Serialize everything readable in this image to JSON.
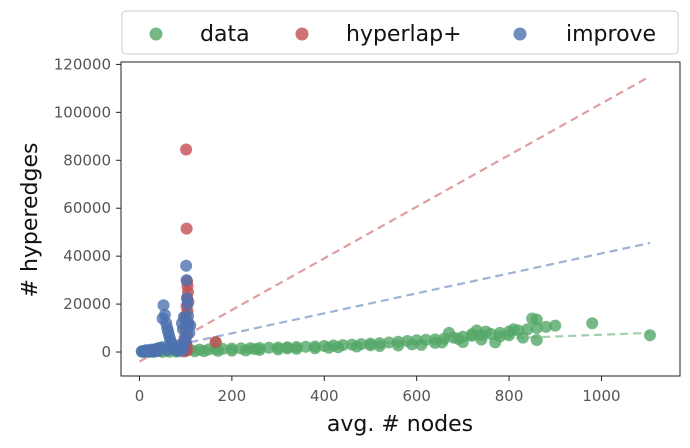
{
  "chart_data": {
    "type": "scatter",
    "xlabel": "avg. # nodes",
    "ylabel": "# hyperedges",
    "xlim": [
      -40,
      1170
    ],
    "ylim": [
      -10000,
      121000
    ],
    "xticks": [
      0,
      200,
      400,
      600,
      800,
      1000
    ],
    "yticks": [
      0,
      20000,
      40000,
      60000,
      80000,
      100000,
      120000
    ],
    "grid": false,
    "legend_position": "top",
    "series": [
      {
        "name": "data",
        "color": "#55a868",
        "points": [
          [
            5,
            100
          ],
          [
            15,
            200
          ],
          [
            25,
            300
          ],
          [
            35,
            400
          ],
          [
            45,
            500
          ],
          [
            60,
            600
          ],
          [
            75,
            700
          ],
          [
            90,
            800
          ],
          [
            110,
            900
          ],
          [
            130,
            1000
          ],
          [
            150,
            1100
          ],
          [
            165,
            1200
          ],
          [
            180,
            1300
          ],
          [
            200,
            1400
          ],
          [
            220,
            1500
          ],
          [
            240,
            1600
          ],
          [
            260,
            1700
          ],
          [
            280,
            1800
          ],
          [
            300,
            1900
          ],
          [
            320,
            2000
          ],
          [
            340,
            2100
          ],
          [
            360,
            2200
          ],
          [
            380,
            2300
          ],
          [
            400,
            2500
          ],
          [
            420,
            2700
          ],
          [
            440,
            2900
          ],
          [
            460,
            3100
          ],
          [
            480,
            3300
          ],
          [
            500,
            3500
          ],
          [
            520,
            3700
          ],
          [
            540,
            4000
          ],
          [
            560,
            4300
          ],
          [
            580,
            4600
          ],
          [
            600,
            4900
          ],
          [
            620,
            5100
          ],
          [
            640,
            5300
          ],
          [
            660,
            5600
          ],
          [
            680,
            6000
          ],
          [
            700,
            6400
          ],
          [
            720,
            6800
          ],
          [
            740,
            7200
          ],
          [
            760,
            7600
          ],
          [
            780,
            8000
          ],
          [
            800,
            8500
          ],
          [
            820,
            9000
          ],
          [
            840,
            9500
          ],
          [
            860,
            10000
          ],
          [
            880,
            10500
          ],
          [
            900,
            11000
          ],
          [
            980,
            12000
          ],
          [
            1105,
            7000
          ],
          [
            670,
            8000
          ],
          [
            730,
            9000
          ],
          [
            810,
            9500
          ],
          [
            850,
            14000
          ],
          [
            860,
            13500
          ],
          [
            860,
            5000
          ],
          [
            780,
            6500
          ],
          [
            740,
            5200
          ],
          [
            700,
            4200
          ],
          [
            640,
            3800
          ],
          [
            590,
            3200
          ],
          [
            560,
            2700
          ],
          [
            500,
            2800
          ],
          [
            470,
            2300
          ],
          [
            430,
            2000
          ],
          [
            380,
            1600
          ],
          [
            340,
            1300
          ],
          [
            300,
            1100
          ],
          [
            260,
            900
          ],
          [
            230,
            700
          ],
          [
            200,
            600
          ],
          [
            170,
            500
          ],
          [
            140,
            400
          ],
          [
            120,
            300
          ],
          [
            95,
            200
          ],
          [
            80,
            150
          ],
          [
            65,
            100
          ],
          [
            50,
            80
          ],
          [
            30,
            50
          ],
          [
            20,
            40
          ],
          [
            10,
            30
          ],
          [
            250,
            1200
          ],
          [
            320,
            1500
          ],
          [
            410,
            1800
          ],
          [
            520,
            2500
          ],
          [
            610,
            3000
          ],
          [
            655,
            4000
          ],
          [
            690,
            5500
          ],
          [
            720,
            7500
          ],
          [
            750,
            8500
          ],
          [
            770,
            4000
          ],
          [
            800,
            7000
          ],
          [
            830,
            6000
          ],
          [
            165,
            4000
          ]
        ]
      },
      {
        "name": "hyperlap+",
        "color": "#c44e52",
        "points": [
          [
            101,
            84500
          ],
          [
            102,
            51500
          ],
          [
            103,
            29500
          ],
          [
            104,
            27500
          ],
          [
            105,
            25000
          ],
          [
            103,
            22500
          ],
          [
            106,
            21000
          ],
          [
            102,
            19000
          ],
          [
            104,
            17000
          ],
          [
            99,
            15000
          ],
          [
            101,
            13000
          ],
          [
            105,
            11000
          ],
          [
            100,
            9000
          ],
          [
            103,
            7000
          ],
          [
            98,
            5000
          ],
          [
            101,
            3500
          ],
          [
            102,
            2500
          ],
          [
            100,
            1500
          ],
          [
            103,
            800
          ],
          [
            99,
            400
          ],
          [
            165,
            4200
          ]
        ]
      },
      {
        "name": "improve",
        "color": "#4c72b0",
        "points": [
          [
            5,
            300
          ],
          [
            10,
            500
          ],
          [
            15,
            800
          ],
          [
            20,
            600
          ],
          [
            25,
            1000
          ],
          [
            30,
            900
          ],
          [
            35,
            1200
          ],
          [
            40,
            1500
          ],
          [
            45,
            1800
          ],
          [
            50,
            2000
          ],
          [
            52,
            19500
          ],
          [
            55,
            15500
          ],
          [
            50,
            14000
          ],
          [
            58,
            12000
          ],
          [
            60,
            10000
          ],
          [
            62,
            8500
          ],
          [
            64,
            7000
          ],
          [
            66,
            5500
          ],
          [
            68,
            4200
          ],
          [
            70,
            3200
          ],
          [
            72,
            2500
          ],
          [
            74,
            2000
          ],
          [
            76,
            1500
          ],
          [
            78,
            1200
          ],
          [
            80,
            900
          ],
          [
            82,
            700
          ],
          [
            85,
            500
          ],
          [
            88,
            2000
          ],
          [
            90,
            3000
          ],
          [
            92,
            12000
          ],
          [
            94,
            9500
          ],
          [
            96,
            14500
          ],
          [
            98,
            6000
          ],
          [
            100,
            4500
          ],
          [
            101,
            36000
          ],
          [
            102,
            30000
          ],
          [
            103,
            22500
          ],
          [
            104,
            20000
          ],
          [
            105,
            15000
          ],
          [
            106,
            12000
          ],
          [
            108,
            8000
          ],
          [
            110,
            11000
          ],
          [
            95,
            1000
          ],
          [
            60,
            800
          ],
          [
            40,
            400
          ],
          [
            30,
            200
          ],
          [
            20,
            150
          ],
          [
            10,
            100
          ]
        ]
      }
    ],
    "trendlines": [
      {
        "series": "hyperlap+",
        "color": "#c44e52",
        "x": [
          0,
          1105
        ],
        "y": [
          -4000,
          115000
        ]
      },
      {
        "series": "improve",
        "color": "#4c72b0",
        "x": [
          0,
          1105
        ],
        "y": [
          -500,
          45500
        ]
      },
      {
        "series": "data",
        "color": "#55a868",
        "x": [
          0,
          1105
        ],
        "y": [
          -200,
          8000
        ]
      }
    ]
  }
}
